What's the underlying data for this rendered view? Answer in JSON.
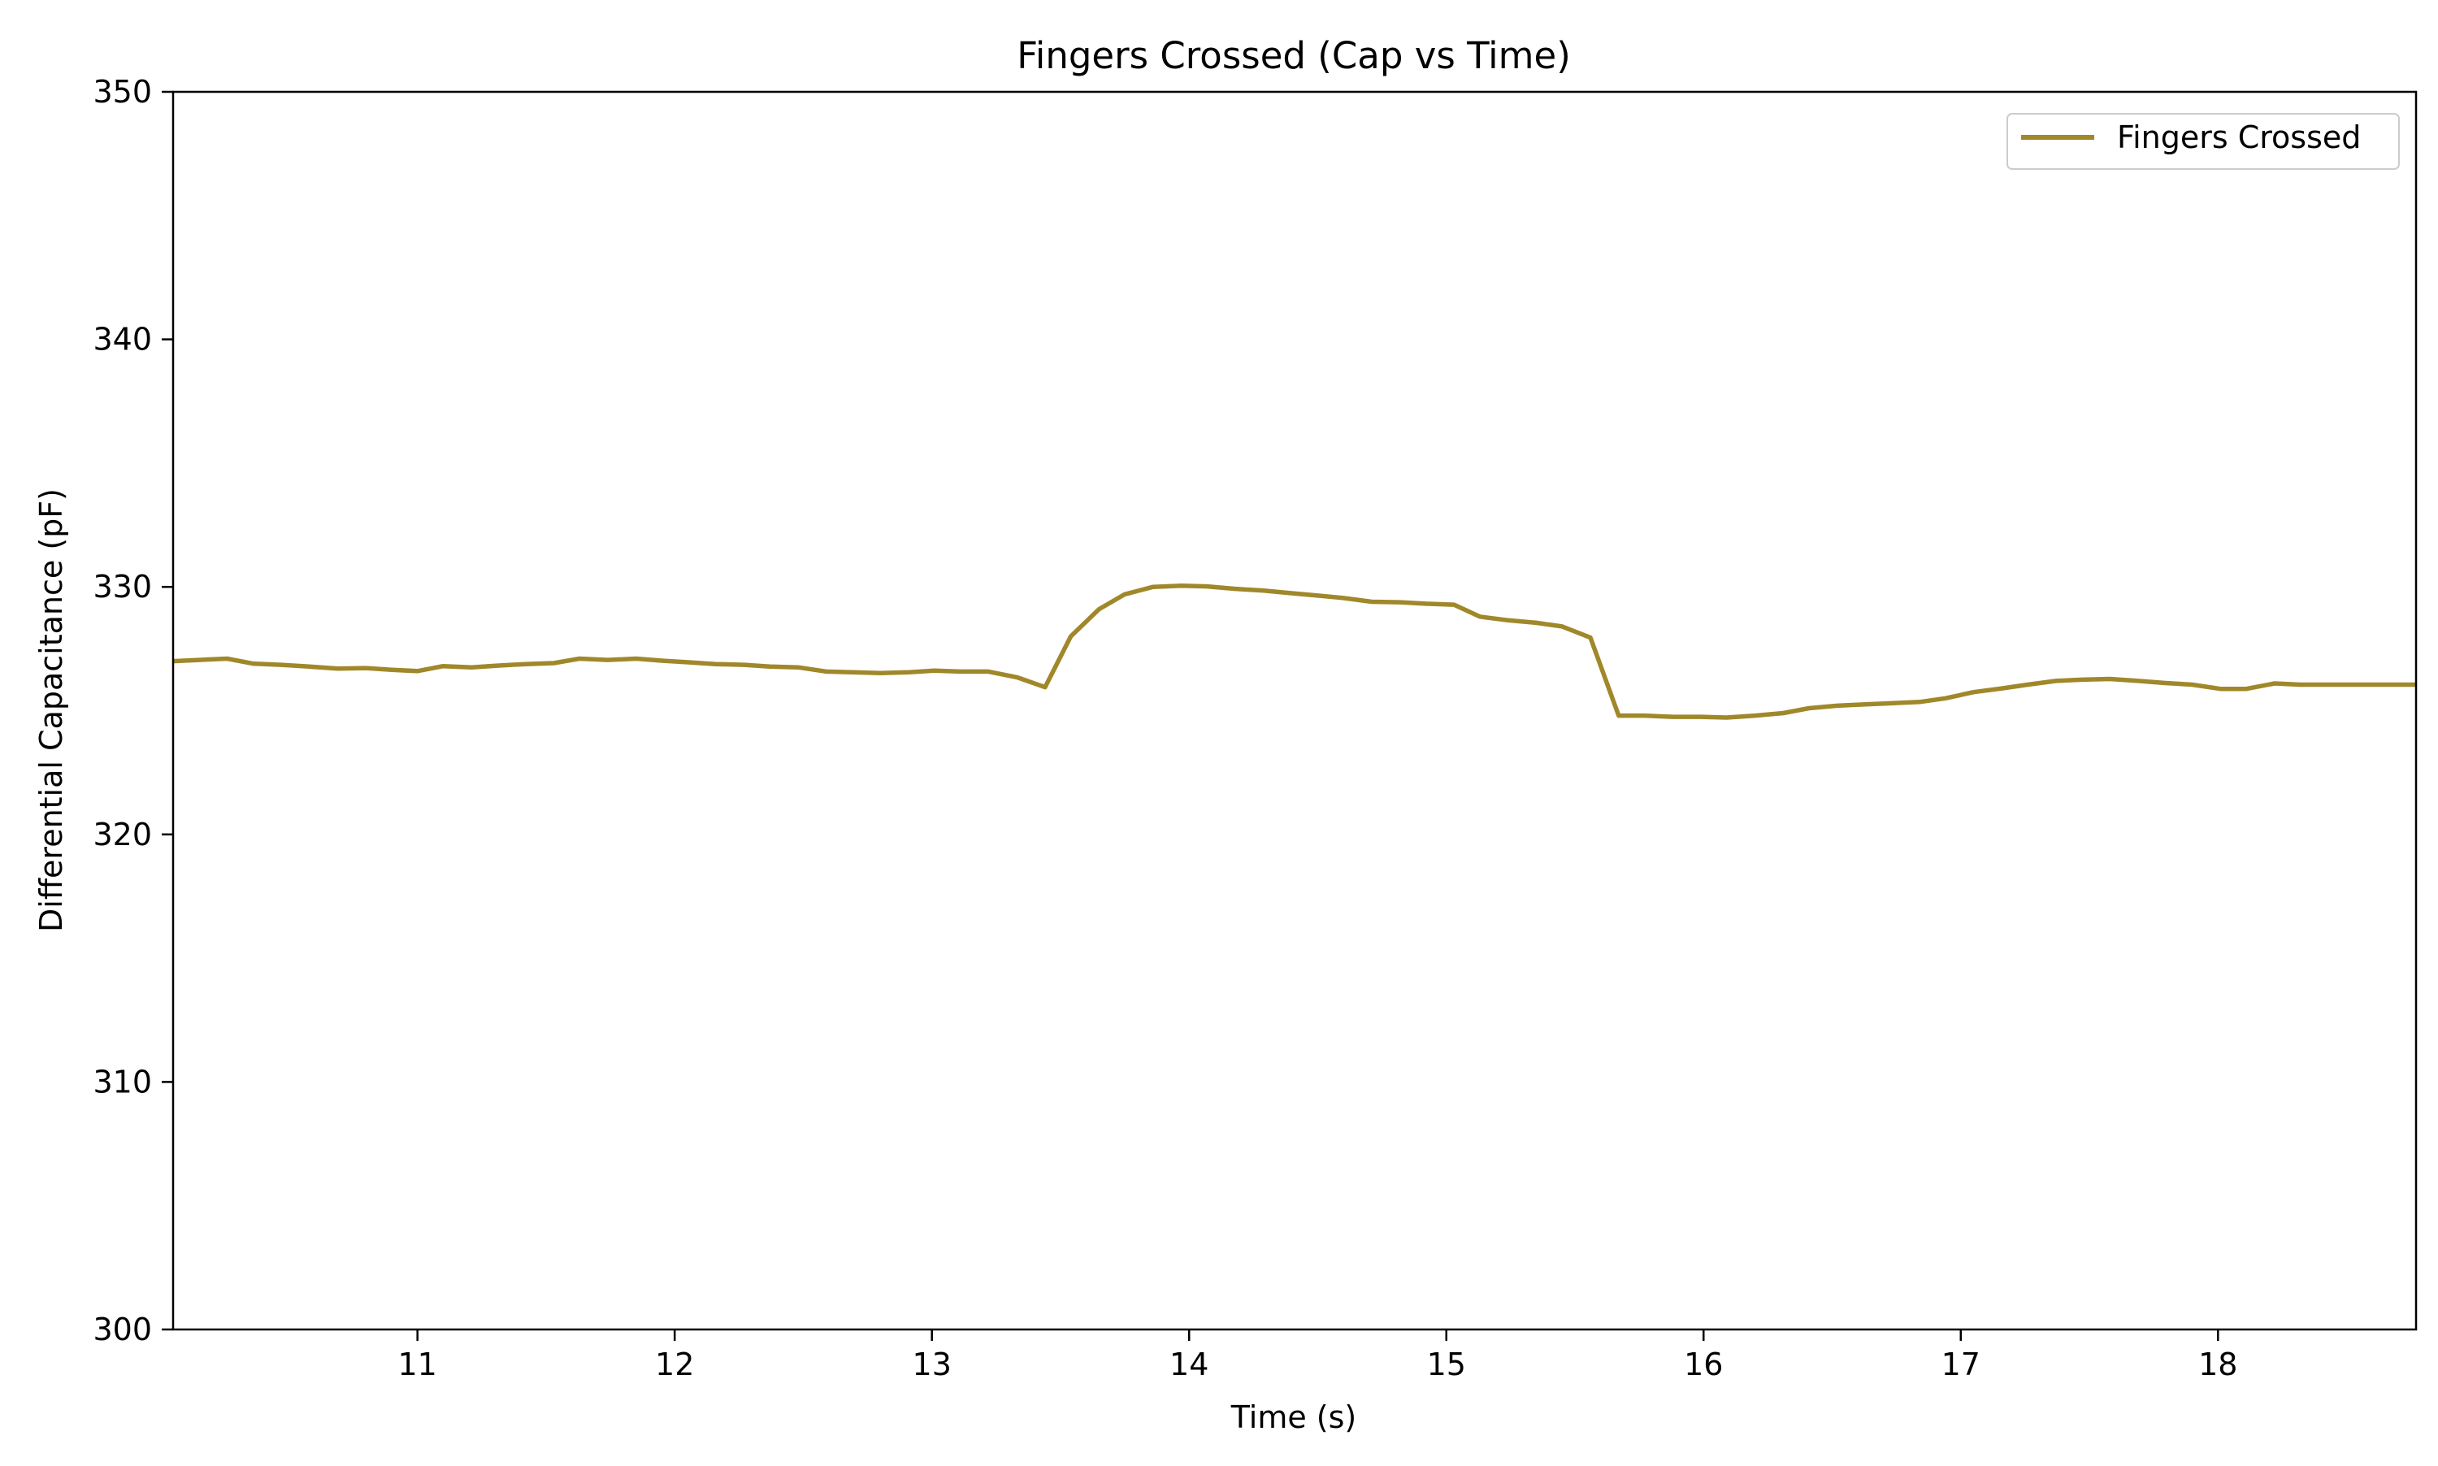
{
  "chart_data": {
    "type": "line",
    "title": "Fingers Crossed (Cap vs Time)",
    "xlabel": "Time (s)",
    "ylabel": "Differential Capacitance (pF)",
    "xlim": [
      10.05,
      18.77
    ],
    "ylim": [
      300,
      350
    ],
    "xticks": [
      11,
      12,
      13,
      14,
      15,
      16,
      17,
      18
    ],
    "yticks": [
      300,
      310,
      320,
      330,
      340,
      350
    ],
    "grid": false,
    "legend": {
      "position": "top-right"
    },
    "series": [
      {
        "name": "Fingers Crossed",
        "color": "#a0882a",
        "x": [
          10.05,
          10.15,
          10.26,
          10.36,
          10.47,
          10.58,
          10.69,
          10.8,
          10.9,
          11.0,
          11.1,
          11.21,
          11.31,
          11.42,
          11.53,
          11.63,
          11.74,
          11.85,
          11.95,
          12.06,
          12.16,
          12.27,
          12.37,
          12.48,
          12.59,
          12.69,
          12.8,
          12.91,
          13.01,
          13.11,
          13.22,
          13.33,
          13.44,
          13.54,
          13.65,
          13.75,
          13.86,
          13.97,
          14.07,
          14.18,
          14.29,
          14.39,
          14.5,
          14.6,
          14.71,
          14.82,
          14.92,
          15.03,
          15.13,
          15.24,
          15.35,
          15.45,
          15.56,
          15.67,
          15.77,
          15.88,
          15.99,
          16.09,
          16.2,
          16.31,
          16.41,
          16.52,
          16.62,
          16.73,
          16.84,
          16.94,
          17.05,
          17.16,
          17.26,
          17.37,
          17.47,
          17.58,
          17.69,
          17.79,
          17.9,
          18.01,
          18.11,
          18.22,
          18.32,
          18.43,
          18.54,
          18.64,
          18.77
        ],
        "values": [
          327.0,
          327.05,
          327.1,
          326.9,
          326.85,
          326.78,
          326.7,
          326.72,
          326.65,
          326.6,
          326.8,
          326.75,
          326.82,
          326.88,
          326.92,
          327.1,
          327.05,
          327.1,
          327.02,
          326.95,
          326.88,
          326.85,
          326.78,
          326.75,
          326.58,
          326.55,
          326.52,
          326.55,
          326.62,
          326.58,
          326.58,
          326.35,
          325.95,
          328.0,
          329.1,
          329.7,
          330.0,
          330.05,
          330.02,
          329.92,
          329.85,
          329.75,
          329.65,
          329.55,
          329.4,
          329.38,
          329.32,
          329.28,
          328.8,
          328.65,
          328.55,
          328.4,
          327.95,
          324.8,
          324.8,
          324.75,
          324.75,
          324.72,
          324.8,
          324.9,
          325.1,
          325.2,
          325.25,
          325.3,
          325.35,
          325.5,
          325.75,
          325.9,
          326.05,
          326.2,
          326.25,
          326.28,
          326.2,
          326.12,
          326.05,
          325.88,
          325.88,
          326.1,
          326.05,
          326.05,
          326.05,
          326.05,
          326.05
        ]
      }
    ]
  }
}
